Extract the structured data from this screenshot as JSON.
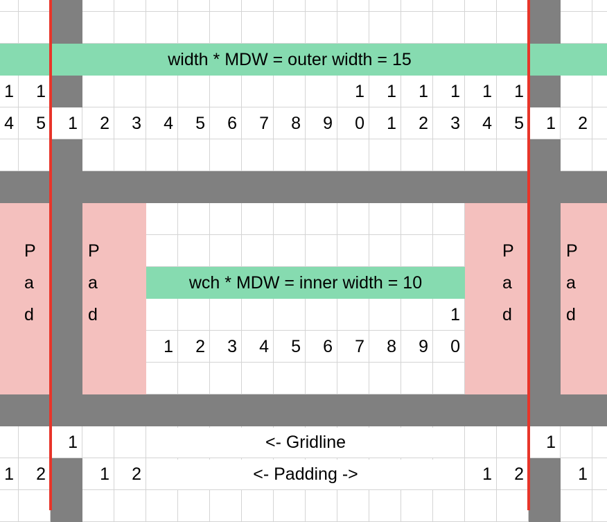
{
  "colors": {
    "gridline": "#d4d4d4",
    "gridline_gap": "#808080",
    "width_band": "#86dbb0",
    "padding": "#f4c0be",
    "boundary_line": "#e8352a"
  },
  "labels": {
    "outer_width": "width * MDW = outer width = 15",
    "inner_width": "wch * MDW = inner width = 10",
    "gridline": "<- Gridline",
    "padding": "<- Padding ->"
  },
  "grid": {
    "rows": [
      [],
      [],
      [],
      [
        "1",
        "1",
        "",
        "",
        "",
        "",
        "",
        "",
        "",
        "",
        "",
        "1",
        "1",
        "1",
        "1",
        "1",
        "1"
      ],
      [
        "4",
        "5",
        "1",
        "2",
        "3",
        "4",
        "5",
        "6",
        "7",
        "8",
        "9",
        "0",
        "1",
        "2",
        "3",
        "4",
        "5",
        "1",
        "2"
      ],
      [],
      [],
      [],
      [
        "",
        "P",
        "",
        "P",
        "",
        "",
        "",
        "",
        "",
        "",
        "",
        "",
        "",
        "",
        "",
        "",
        "P",
        "",
        "P"
      ],
      [
        "",
        "a",
        "",
        "a",
        "",
        "",
        "",
        "",
        "",
        "",
        "",
        "",
        "",
        "",
        "",
        "",
        "a",
        "",
        "a"
      ],
      [
        "",
        "d",
        "",
        "d",
        "",
        "",
        "",
        "",
        "",
        "",
        "",
        "",
        "",
        "",
        "1",
        "",
        "d",
        "",
        "d"
      ],
      [
        "",
        "",
        "",
        "",
        "",
        "1",
        "2",
        "3",
        "4",
        "5",
        "6",
        "7",
        "8",
        "9",
        "0"
      ],
      [],
      [],
      [
        "",
        "",
        "1",
        "",
        "",
        "",
        "",
        "",
        "",
        "",
        "",
        "",
        "",
        "",
        "",
        "",
        "",
        "1"
      ],
      [
        "1",
        "2",
        "",
        "1",
        "2",
        "",
        "",
        "",
        "",
        "",
        "",
        "",
        "",
        "",
        "",
        "1",
        "2",
        "",
        "1"
      ],
      []
    ]
  }
}
